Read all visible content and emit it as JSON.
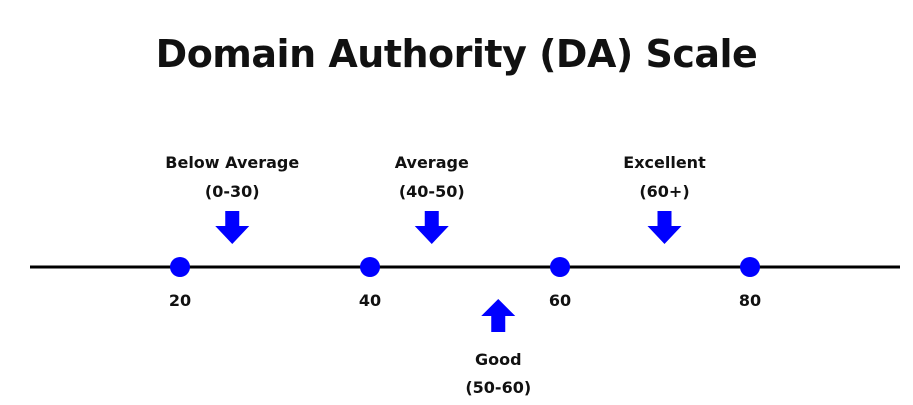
{
  "title": "Domain Authority (DA) Scale",
  "scale": {
    "line_color": "#000000",
    "marker_color": "#0000ff",
    "arrow_color": "#0000ff",
    "ticks": [
      {
        "value": 20,
        "label": "20"
      },
      {
        "value": 40,
        "label": "40"
      },
      {
        "value": 60,
        "label": "60"
      },
      {
        "value": 80,
        "label": "80"
      }
    ],
    "ranges": [
      {
        "name": "Below Average",
        "range": "(0-30)",
        "at": 25.5,
        "side": "above"
      },
      {
        "name": "Average",
        "range": "(40-50)",
        "at": 46.5,
        "side": "above"
      },
      {
        "name": "Good",
        "range": "(50-60)",
        "at": 53.5,
        "side": "below"
      },
      {
        "name": "Excellent",
        "range": "(60+)",
        "at": 71,
        "side": "above"
      }
    ]
  }
}
